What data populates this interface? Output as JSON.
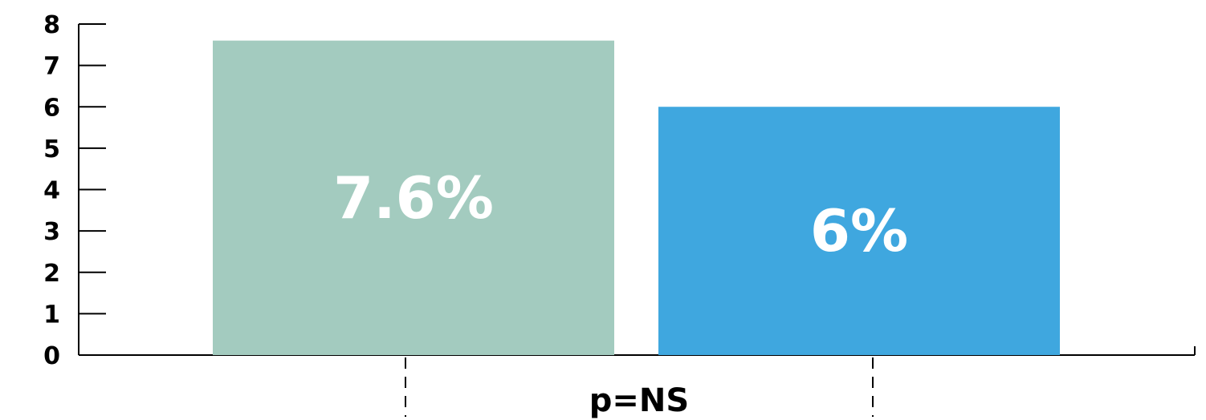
{
  "chart_data": {
    "type": "bar",
    "series": [
      {
        "values": [
          7.6,
          6.0
        ],
        "colors": [
          "#a3cbbf",
          "#3fa7df"
        ]
      }
    ],
    "data_labels": [
      "7.6%",
      "6%"
    ],
    "yticks": [
      "0",
      "1",
      "2",
      "3",
      "4",
      "5",
      "6",
      "7",
      "8"
    ],
    "ylim": [
      0,
      8
    ],
    "annotation": "p=NS",
    "grid": false,
    "legend": "none"
  }
}
